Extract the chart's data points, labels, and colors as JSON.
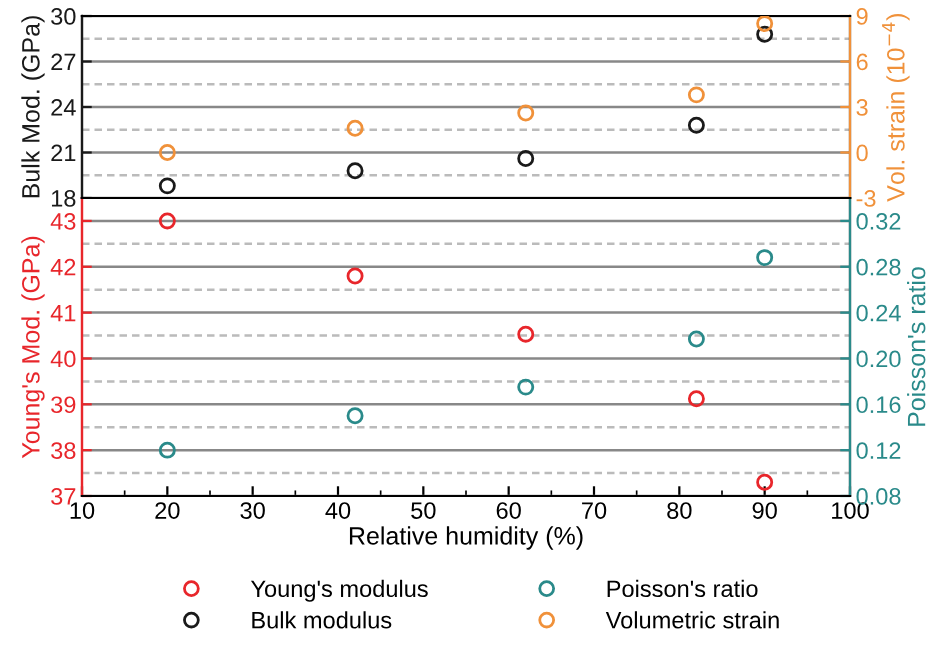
{
  "chart_data": [
    {
      "type": "scatter",
      "ylabel": "Bulk Mod. (GPa)",
      "y2label": "Vol. strain (10$^{−4}$)",
      "x": [
        20,
        42,
        62,
        82,
        90
      ],
      "series": [
        {
          "name": "Bulk modulus",
          "color": "#1a1a1a",
          "values": [
            18.8,
            19.8,
            20.6,
            22.8,
            28.8
          ]
        },
        {
          "name": "Volumetric strain",
          "color": "#f0913a",
          "axis": "y2",
          "values": [
            0.0,
            1.6,
            2.6,
            3.8,
            8.5
          ]
        }
      ],
      "xlim": [
        10,
        100
      ],
      "ylim": [
        18,
        30
      ],
      "yticks": [
        18,
        21,
        24,
        27,
        30
      ],
      "y2lim": [
        -3,
        9
      ],
      "y2ticks": [
        -3,
        0,
        3,
        6,
        9
      ],
      "tick_labels": "y",
      "grid": "y",
      "marker": "circle",
      "legend": "bottom"
    },
    {
      "type": "scatter",
      "xlabel": "Relative humidity (%)",
      "ylabel": "Young's Mod. (GPa)",
      "y2label": "Poisson's ratio",
      "x": [
        20,
        42,
        62,
        82,
        90
      ],
      "series": [
        {
          "name": "Young's modulus",
          "color": "#e8262b",
          "values": [
            43.0,
            41.8,
            40.53,
            39.12,
            37.3
          ]
        },
        {
          "name": "Poisson's ratio",
          "color": "#2a8a8a",
          "axis": "y2",
          "values": [
            0.12,
            0.15,
            0.175,
            0.217,
            0.288
          ]
        }
      ],
      "xlim": [
        10,
        100
      ],
      "xticks": [
        10,
        20,
        30,
        40,
        50,
        60,
        70,
        80,
        90,
        100
      ],
      "ylim": [
        37,
        43.5
      ],
      "yticks": [
        37,
        38,
        39,
        40,
        41,
        42,
        43
      ],
      "y2lim": [
        0.08,
        0.34
      ],
      "y2ticks": [
        {
          "value": 0.08,
          "label": "0.08"
        },
        {
          "value": 0.12,
          "label": "0.12"
        },
        {
          "value": 0.16,
          "label": "0.16"
        },
        {
          "value": 0.2,
          "label": "0.20"
        },
        {
          "value": 0.24,
          "label": "0.24"
        },
        {
          "value": 0.28,
          "label": "0.28"
        },
        {
          "value": 0.32,
          "label": "0.32"
        }
      ],
      "grid": "y",
      "marker": "circle",
      "legend": "bottom"
    }
  ]
}
